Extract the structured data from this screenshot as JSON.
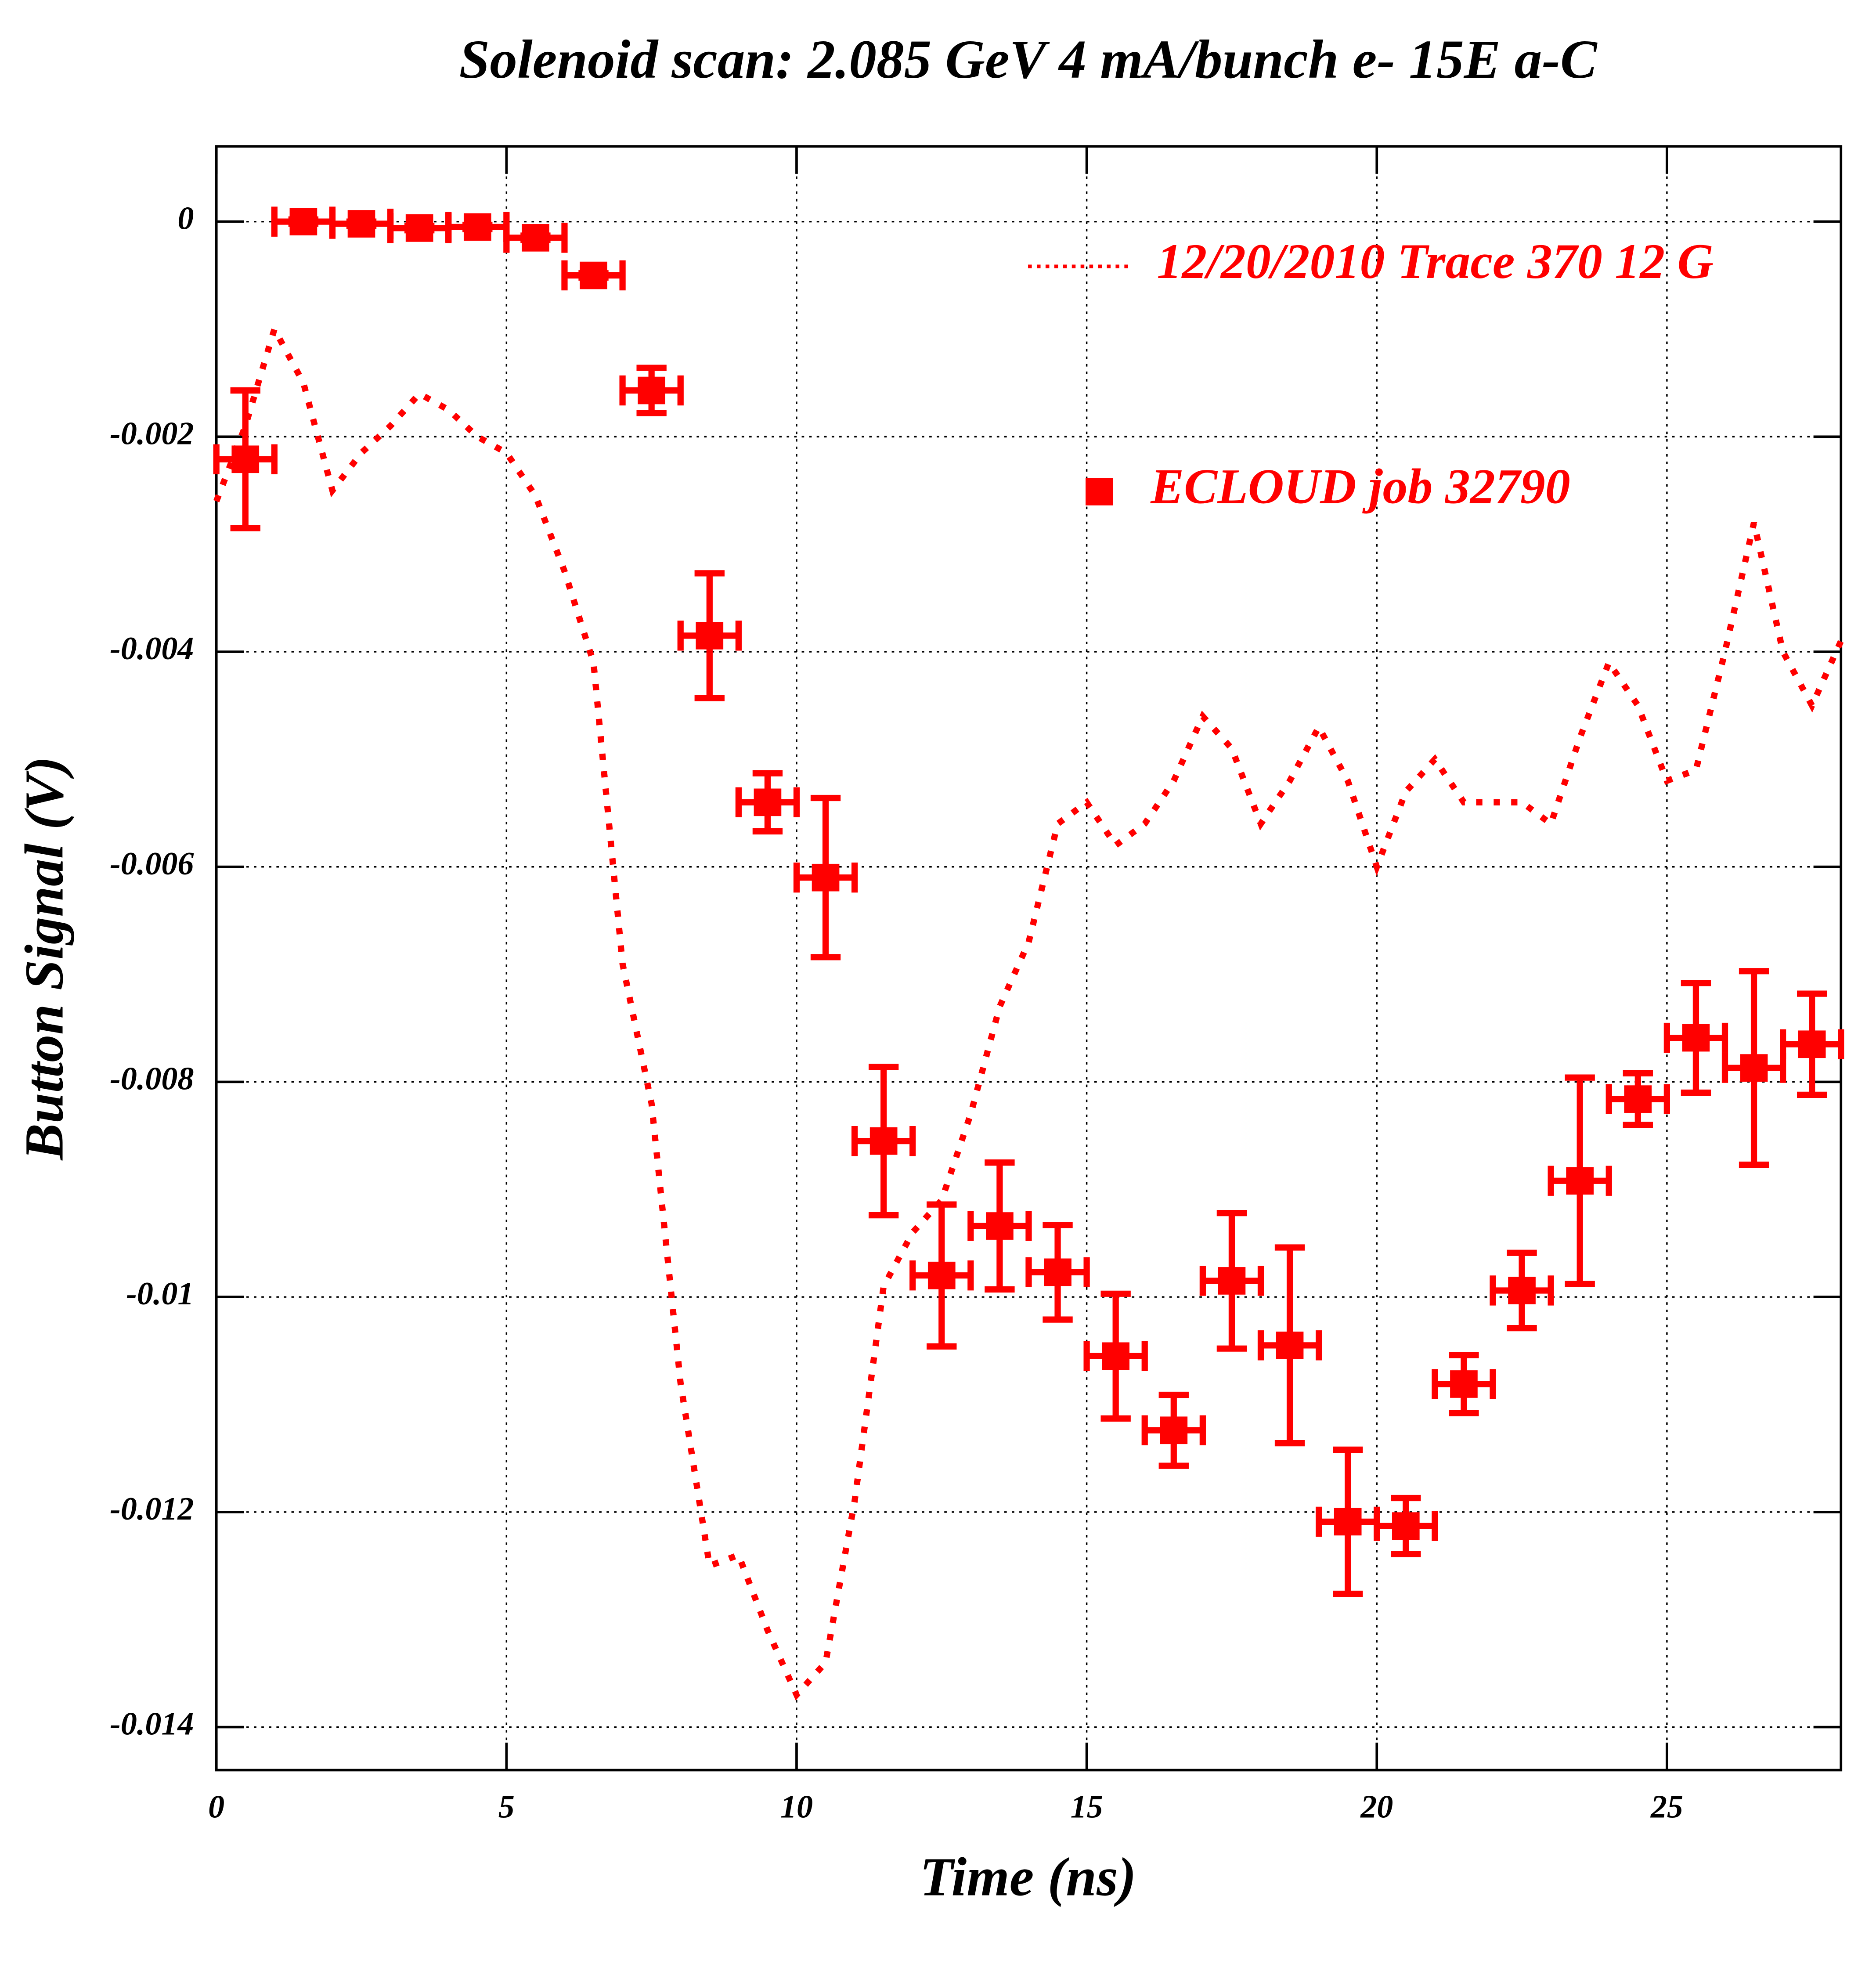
{
  "chart_data": {
    "type": "scatter",
    "title": "Solenoid scan: 2.085 GeV 4 mA/bunch e- 15E a-C",
    "x_label": "Time (ns)",
    "y_label": "Button Signal (V)",
    "xlim": [
      0,
      28
    ],
    "ylim": [
      -0.0144,
      0.0007
    ],
    "xticks": [
      0,
      5,
      10,
      15,
      20,
      25
    ],
    "yticks": [
      0,
      -0.002,
      -0.004,
      -0.006,
      -0.008,
      -0.01,
      -0.012,
      -0.014
    ],
    "grid": true,
    "legend": "upper right",
    "series": [
      {
        "name": "12/20/2010 Trace 370  12 G",
        "color": "#ff0000",
        "style": "dotted",
        "x": [
          0,
          0.5,
          1,
          1.5,
          2,
          2.5,
          3,
          3.5,
          4,
          4.5,
          5,
          5.5,
          6,
          6.5,
          7,
          7.5,
          8,
          8.5,
          9,
          9.5,
          10,
          10.5,
          11,
          11.5,
          12,
          12.5,
          13,
          13.5,
          14,
          14.5,
          15,
          15.5,
          16,
          16.5,
          17,
          17.5,
          18,
          18.5,
          19,
          19.5,
          20,
          20.5,
          21,
          21.5,
          22,
          22.5,
          23,
          23.5,
          24,
          24.5,
          25,
          25.5,
          26,
          26.5,
          27,
          27.5,
          28
        ],
        "values": [
          -0.0026,
          -0.0019,
          -0.001,
          -0.0015,
          -0.0025,
          -0.00215,
          -0.0019,
          -0.0016,
          -0.00175,
          -0.002,
          -0.00215,
          -0.00255,
          -0.00325,
          -0.0041,
          -0.0069,
          -0.0082,
          -0.0108,
          -0.0125,
          -0.0124,
          -0.0131,
          -0.0137,
          -0.0134,
          -0.0119,
          -0.0099,
          -0.0094,
          -0.0091,
          -0.0083,
          -0.0073,
          -0.0067,
          -0.0056,
          -0.0054,
          -0.0058,
          -0.0056,
          -0.0052,
          -0.0046,
          -0.0049,
          -0.0056,
          -0.0052,
          -0.0047,
          -0.0052,
          -0.006,
          -0.0053,
          -0.005,
          -0.0054,
          -0.0054,
          -0.0054,
          -0.0056,
          -0.0048,
          -0.0041,
          -0.0045,
          -0.0052,
          -0.0051,
          -0.004,
          -0.0028,
          -0.004,
          -0.0045,
          -0.0039
        ]
      },
      {
        "name": "ECLOUD job 32790",
        "color": "#ff0000",
        "marker": "square",
        "x": [
          0.5,
          1.5,
          2.5,
          3.5,
          4.5,
          5.5,
          6.5,
          7.5,
          8.5,
          9.5,
          10.5,
          11.5,
          12.5,
          13.5,
          14.5,
          15.5,
          16.5,
          17.5,
          18.5,
          19.5,
          20.5,
          21.5,
          22.5,
          23.5,
          24.5,
          25.5,
          26.5,
          27.5
        ],
        "values": [
          -0.00221,
          0,
          -2e-05,
          -6e-05,
          -5e-05,
          -0.00015,
          -0.0005,
          -0.00157,
          -0.00385,
          -0.0054,
          -0.0061,
          -0.00855,
          -0.0098,
          -0.00934,
          -0.00977,
          -0.01055,
          -0.01124,
          -0.00985,
          -0.01045,
          -0.01209,
          -0.01213,
          -0.01081,
          -0.00994,
          -0.00892,
          -0.00816,
          -0.00759,
          -0.00787,
          -0.00765
        ],
        "errors": [
          0.00064,
          2e-05,
          2e-05,
          2e-05,
          2e-05,
          2e-05,
          2e-05,
          0.00021,
          0.00058,
          0.00027,
          0.00074,
          0.00069,
          0.00066,
          0.00059,
          0.00044,
          0.00058,
          0.00033,
          0.00063,
          0.00091,
          0.00067,
          0.00026,
          0.00027,
          0.00035,
          0.00096,
          0.00024,
          0.00051,
          0.0009,
          0.00047
        ],
        "xerr": 0.5
      }
    ]
  }
}
